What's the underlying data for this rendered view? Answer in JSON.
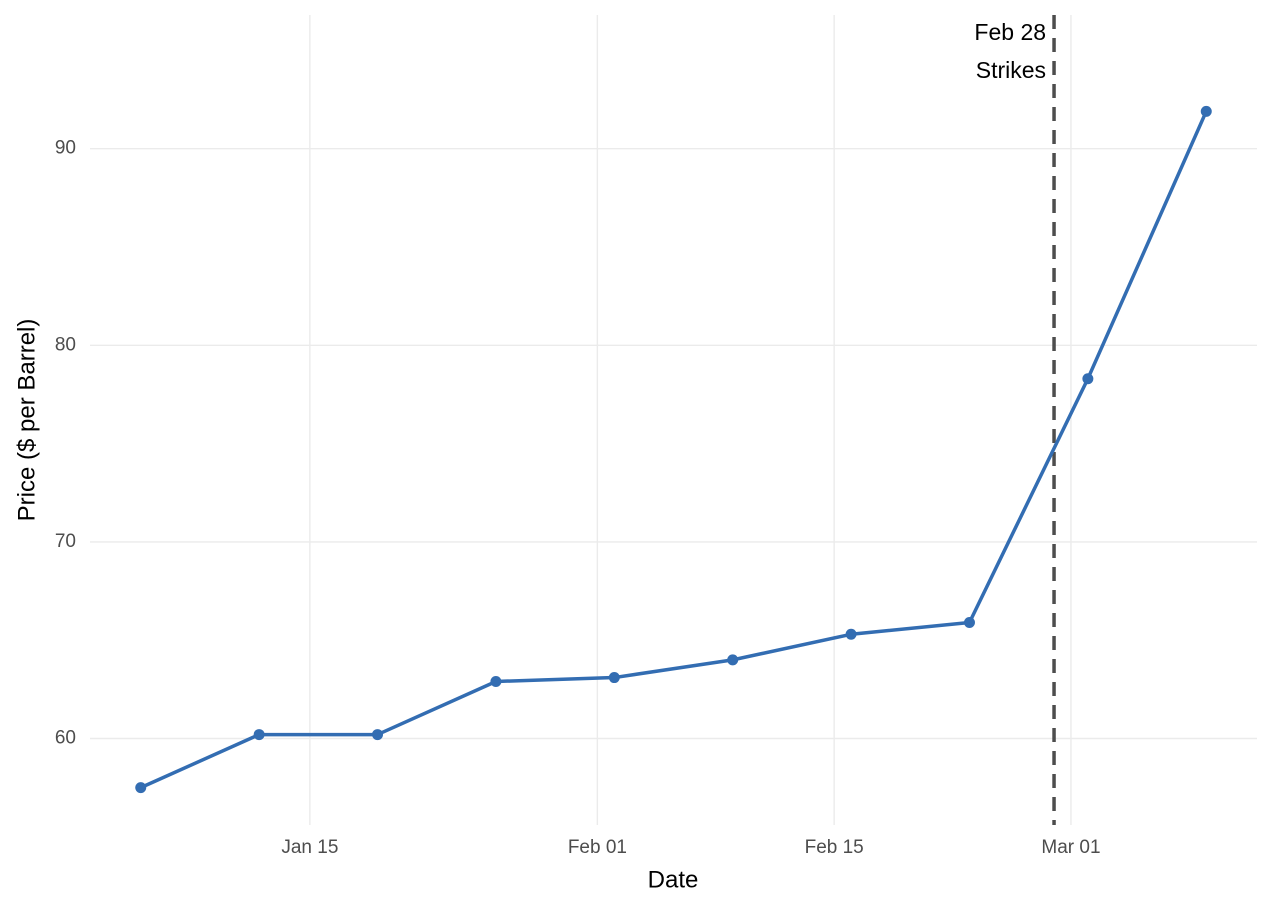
{
  "chart_data": {
    "type": "line",
    "x_label": "Date",
    "y_label": "Price ($ per Barrel)",
    "x": [
      "Jan 05",
      "Jan 12",
      "Jan 19",
      "Jan 26",
      "Feb 02",
      "Feb 09",
      "Feb 16",
      "Feb 23",
      "Mar 02",
      "Mar 09"
    ],
    "series": [
      {
        "color": "#336db2",
        "values": [
          57.5,
          60.2,
          60.2,
          62.9,
          63.1,
          64.0,
          65.3,
          65.9,
          78.3,
          91.9
        ]
      }
    ],
    "xlim": [
      "Jan 02",
      "Mar 12"
    ],
    "xticks": [
      "Jan 15",
      "Feb 01",
      "Feb 15",
      "Mar 01"
    ],
    "ylim": [
      55.6,
      96.8
    ],
    "yticks": [
      60,
      70,
      80,
      90
    ],
    "grid": true,
    "vline": {
      "x": "Feb 28",
      "color": "#4d4d4d",
      "label": [
        "Feb 28",
        "Strikes"
      ]
    }
  }
}
